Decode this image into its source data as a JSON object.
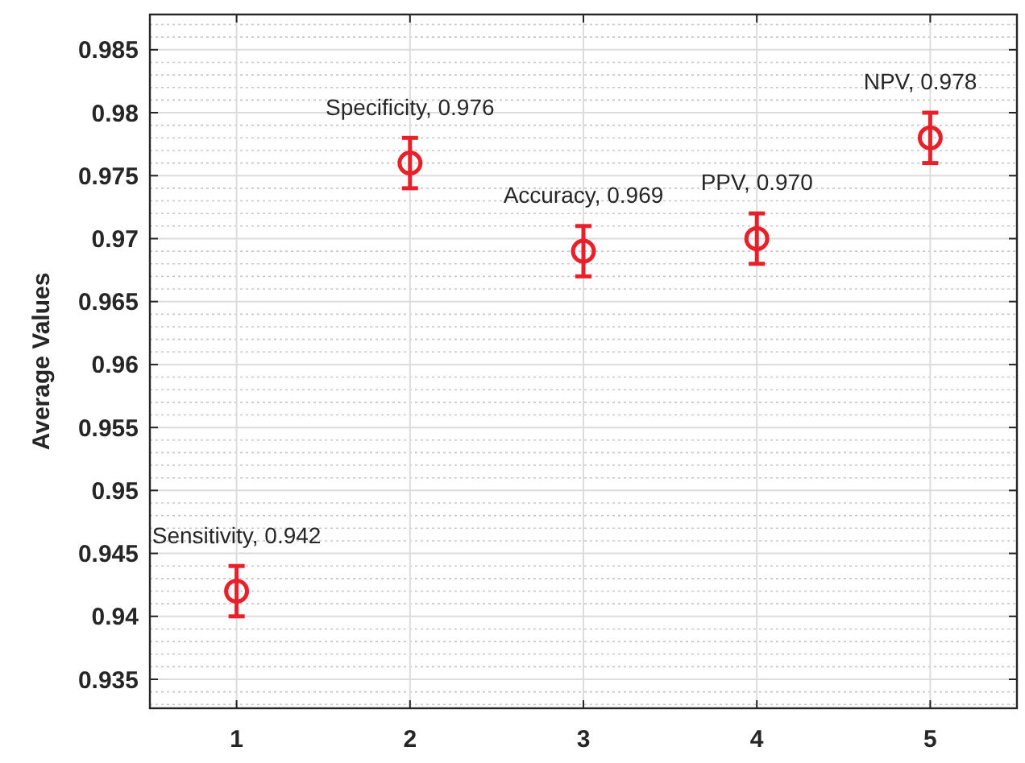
{
  "chart_data": {
    "type": "scatter",
    "ylabel": "Average Values",
    "x": [
      1,
      2,
      3,
      4,
      5
    ],
    "series": [
      {
        "color": "#e8202a",
        "values": [
          0.942,
          0.976,
          0.969,
          0.97,
          0.978
        ],
        "errors": [
          0.002,
          0.002,
          0.002,
          0.002,
          0.002
        ]
      }
    ],
    "xlim": [
      0.5,
      5.5
    ],
    "xticks": [
      1,
      2,
      3,
      4,
      5
    ],
    "ylim": [
      0.9327,
      0.9878
    ],
    "yticks": [
      0.935,
      0.94,
      0.945,
      0.95,
      0.955,
      0.96,
      0.965,
      0.97,
      0.975,
      0.98,
      0.985
    ],
    "grid": true,
    "marker": "circle",
    "annotations": [
      {
        "text": "Sensitivity, 0.942",
        "x": 1,
        "y": 0.942
      },
      {
        "text": "Specificity, 0.976",
        "x": 2,
        "y": 0.976
      },
      {
        "text": "Accuracy, 0.969",
        "x": 3,
        "y": 0.969
      },
      {
        "text": "PPV, 0.970",
        "x": 4,
        "y": 0.97
      },
      {
        "text": "NPV, 0.978",
        "x": 5,
        "y": 0.978
      }
    ]
  }
}
